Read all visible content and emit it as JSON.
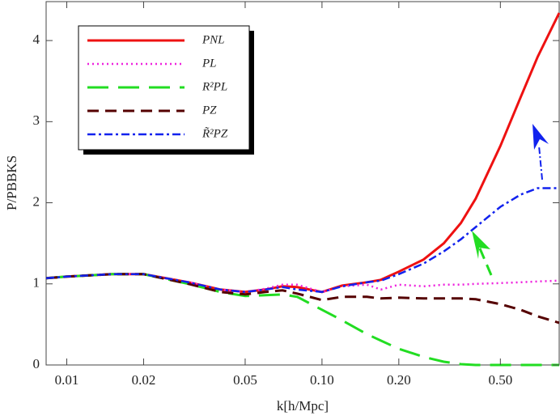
{
  "chart_data": {
    "type": "line",
    "x_label": "k[h/Mpc]",
    "y_label": "P/PBBKS",
    "xscale": "log",
    "x": [
      0.0083,
      0.01,
      0.015,
      0.02,
      0.03,
      0.04,
      0.05,
      0.06,
      0.07,
      0.08,
      0.1,
      0.12,
      0.15,
      0.17,
      0.2,
      0.25,
      0.3,
      0.35,
      0.4,
      0.5,
      0.6,
      0.7,
      0.85
    ],
    "xlim": [
      0.0083,
      0.85
    ],
    "xticks": [
      0.01,
      0.02,
      0.05,
      {
        "value": 0.1,
        "label": "0.10"
      },
      {
        "value": 0.2,
        "label": "0.20"
      },
      {
        "value": 0.5,
        "label": "0.50"
      }
    ],
    "ylim": [
      0,
      4.48
    ],
    "yticks": [
      0,
      1,
      2,
      3,
      4
    ],
    "series": [
      {
        "name": "PNL",
        "color": "#ee1111",
        "dash": "solid",
        "values": [
          1.07,
          1.09,
          1.12,
          1.12,
          1.02,
          0.93,
          0.9,
          0.93,
          0.97,
          0.96,
          0.9,
          0.98,
          1.02,
          1.05,
          1.15,
          1.3,
          1.5,
          1.75,
          2.05,
          2.7,
          3.3,
          3.8,
          4.34
        ]
      },
      {
        "name": "PL",
        "color": "#ee22dd",
        "dash": "dot",
        "values": [
          1.07,
          1.09,
          1.12,
          1.12,
          1.02,
          0.93,
          0.9,
          0.94,
          0.99,
          0.99,
          0.9,
          0.97,
          0.99,
          0.93,
          0.99,
          0.97,
          0.99,
          0.99,
          1.0,
          1.01,
          1.02,
          1.03,
          1.04
        ]
      },
      {
        "name": "R²PL",
        "color": "#22dd22",
        "dash": "longdash",
        "values": [
          1.07,
          1.09,
          1.12,
          1.12,
          1.0,
          0.9,
          0.85,
          0.86,
          0.87,
          0.84,
          0.68,
          0.55,
          0.38,
          0.3,
          0.2,
          0.1,
          0.04,
          0.01,
          0,
          0,
          0,
          0,
          0
        ]
      },
      {
        "name": "PZ",
        "color": "#550000",
        "dash": "dash",
        "values": [
          1.07,
          1.09,
          1.12,
          1.12,
          1.0,
          0.9,
          0.87,
          0.9,
          0.92,
          0.88,
          0.8,
          0.84,
          0.84,
          0.82,
          0.83,
          0.82,
          0.82,
          0.82,
          0.81,
          0.75,
          0.68,
          0.6,
          0.52
        ]
      },
      {
        "name": "R̃²PZ",
        "color": "#1122ee",
        "dash": "dashdot",
        "values": [
          1.07,
          1.09,
          1.12,
          1.12,
          1.02,
          0.93,
          0.9,
          0.93,
          0.96,
          0.93,
          0.9,
          0.97,
          1.02,
          1.04,
          1.12,
          1.25,
          1.4,
          1.55,
          1.7,
          1.95,
          2.1,
          2.18,
          2.18
        ]
      }
    ]
  }
}
